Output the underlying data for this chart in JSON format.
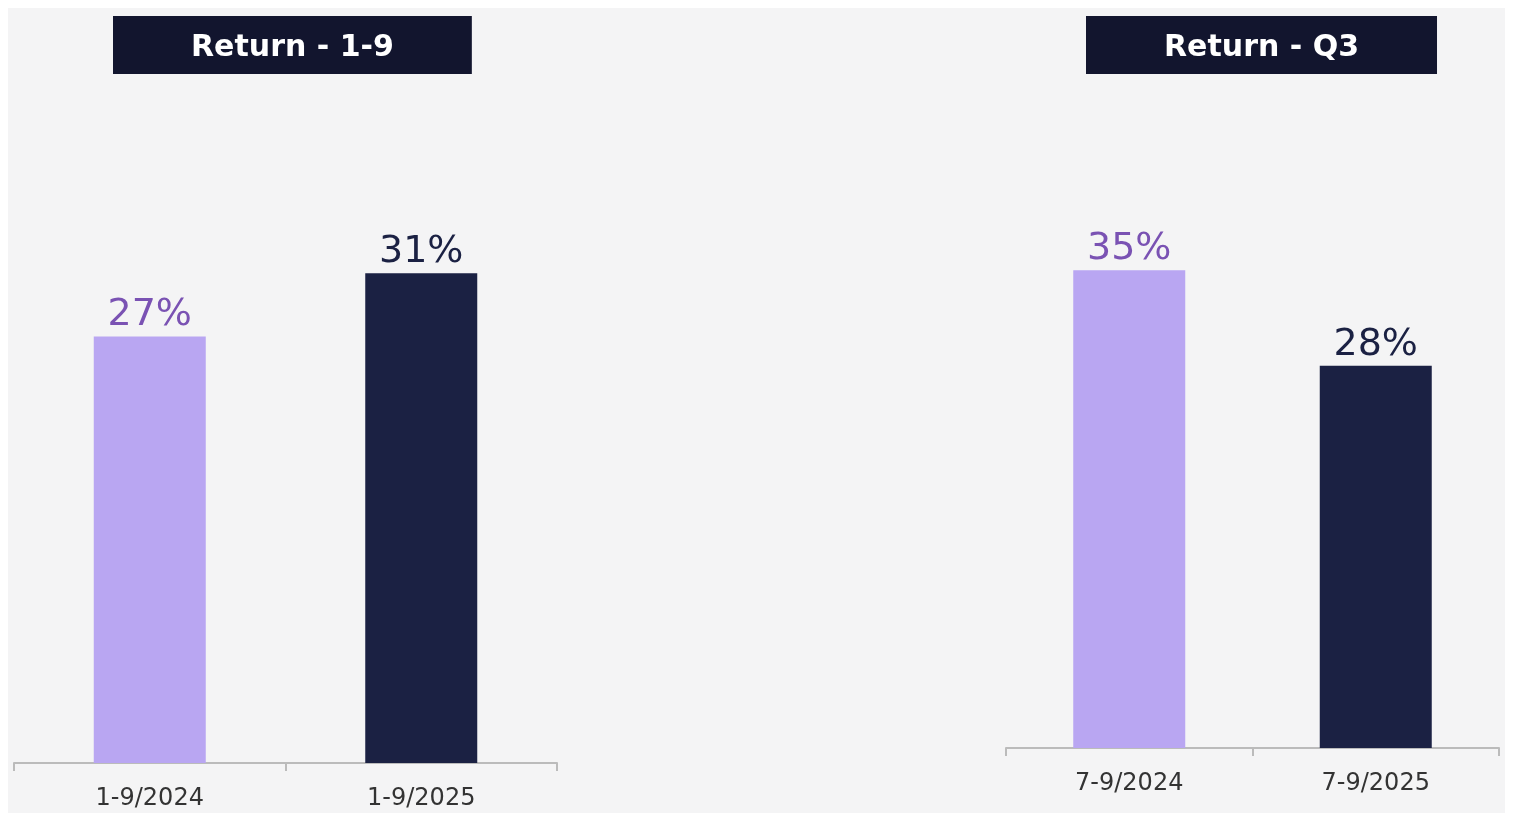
{
  "chart_data": [
    {
      "type": "bar",
      "title": "Return - 1-9",
      "categories": [
        "1-9/2024",
        "1-9/2025"
      ],
      "values": [
        27,
        31
      ],
      "colors": [
        "#b9a6f2",
        "#1b2143"
      ],
      "value_labels": [
        "27%",
        "31%"
      ]
    },
    {
      "type": "bar",
      "title": "Return - Q3",
      "categories": [
        "7-9/2024",
        "7-9/2025"
      ],
      "values": [
        35,
        28
      ],
      "colors": [
        "#b9a6f2",
        "#1b2143"
      ],
      "value_labels": [
        "35%",
        "28%"
      ]
    }
  ]
}
